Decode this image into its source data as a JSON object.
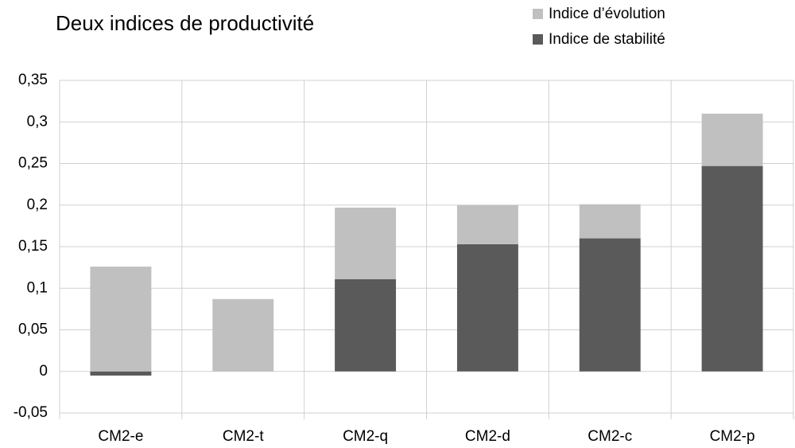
{
  "chart_data": {
    "type": "stacked_bar",
    "title": "Deux indices de productivité",
    "categories": [
      "CM2-e",
      "CM2-t",
      "CM2-q",
      "CM2-d",
      "CM2-c",
      "CM2-p"
    ],
    "series": [
      {
        "name": "Indice de stabilité",
        "color": "#5a5a5a",
        "values": [
          -0.005,
          0,
          0.111,
          0.153,
          0.16,
          0.247
        ]
      },
      {
        "name": "Indice d’évolution",
        "color": "#c0c0c0",
        "values": [
          0.126,
          0.087,
          0.086,
          0.047,
          0.041,
          0.063
        ]
      }
    ],
    "ylim": [
      -0.05,
      0.35
    ],
    "yticks": [
      {
        "value": -0.05,
        "label": "-0,05"
      },
      0,
      {
        "value": 0.05,
        "label": "0,05"
      },
      {
        "value": 0.1,
        "label": "0,1"
      },
      {
        "value": 0.15,
        "label": "0,15"
      },
      {
        "value": 0.2,
        "label": "0,2"
      },
      {
        "value": 0.25,
        "label": "0,25"
      },
      {
        "value": 0.3,
        "label": "0,3"
      },
      {
        "value": 0.35,
        "label": "0,35"
      }
    ],
    "grid": true
  }
}
